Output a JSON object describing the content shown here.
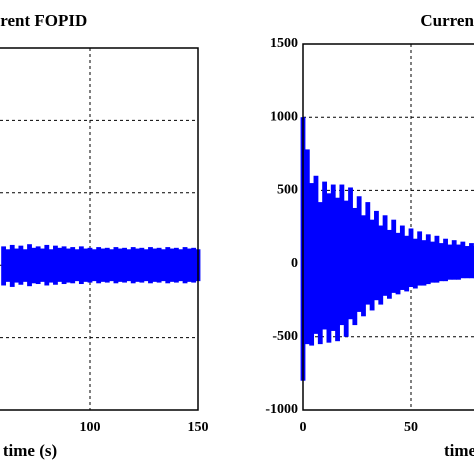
{
  "chart_data": [
    {
      "type": "band",
      "title": "rrent FOPID",
      "x_label": "time (s)",
      "color": "#0000ff",
      "xlim": [
        0,
        150
      ],
      "xticks": [
        100,
        150
      ],
      "ylim": [
        -1000,
        1500
      ],
      "yticks": [
        -1000,
        -500,
        0,
        500,
        1000,
        1500
      ],
      "ytick_labels": false,
      "grid": true,
      "x": [
        60,
        62,
        64,
        66,
        68,
        70,
        72,
        74,
        76,
        78,
        80,
        82,
        84,
        86,
        88,
        90,
        92,
        94,
        96,
        98,
        100,
        102,
        104,
        106,
        108,
        110,
        112,
        114,
        116,
        118,
        120,
        122,
        124,
        126,
        128,
        130,
        132,
        134,
        136,
        138,
        140,
        142,
        144,
        146,
        148,
        150
      ],
      "high": [
        130,
        110,
        140,
        115,
        135,
        110,
        145,
        120,
        130,
        115,
        140,
        110,
        135,
        120,
        130,
        115,
        125,
        110,
        130,
        115,
        120,
        110,
        125,
        115,
        120,
        110,
        125,
        115,
        120,
        110,
        125,
        115,
        120,
        110,
        125,
        115,
        120,
        110,
        125,
        115,
        120,
        110,
        125,
        115,
        120,
        110
      ],
      "low": [
        -140,
        -115,
        -150,
        -120,
        -135,
        -115,
        -145,
        -125,
        -130,
        -115,
        -140,
        -120,
        -135,
        -115,
        -130,
        -120,
        -125,
        -110,
        -130,
        -115,
        -120,
        -110,
        -125,
        -115,
        -120,
        -110,
        -125,
        -115,
        -120,
        -110,
        -125,
        -115,
        -120,
        -110,
        -125,
        -115,
        -120,
        -110,
        -125,
        -115,
        -120,
        -110,
        -125,
        -115,
        -120,
        -110
      ]
    },
    {
      "type": "band",
      "title": "Current",
      "x_label": "time",
      "color": "#0000ff",
      "xlim": [
        0,
        150
      ],
      "xticks": [
        0,
        50
      ],
      "ylim": [
        -1000,
        1500
      ],
      "yticks": [
        -1000,
        -500,
        0,
        500,
        1000,
        1500
      ],
      "ytick_labels": true,
      "grid": true,
      "x": [
        0,
        2,
        4,
        6,
        8,
        10,
        12,
        14,
        16,
        18,
        20,
        22,
        24,
        26,
        28,
        30,
        32,
        34,
        36,
        38,
        40,
        42,
        44,
        46,
        48,
        50,
        52,
        54,
        56,
        58,
        60,
        62,
        64,
        66,
        68,
        70,
        72,
        74,
        76,
        78,
        80
      ],
      "high": [
        1000,
        780,
        550,
        600,
        420,
        560,
        480,
        540,
        450,
        540,
        430,
        520,
        380,
        460,
        330,
        420,
        300,
        360,
        260,
        330,
        230,
        300,
        210,
        260,
        190,
        240,
        170,
        220,
        160,
        200,
        150,
        190,
        140,
        170,
        130,
        160,
        130,
        150,
        120,
        140,
        120
      ],
      "low": [
        -800,
        -550,
        -560,
        -480,
        -550,
        -450,
        -540,
        -460,
        -530,
        -420,
        -500,
        -380,
        -420,
        -330,
        -360,
        -280,
        -320,
        -250,
        -280,
        -220,
        -240,
        -200,
        -210,
        -180,
        -190,
        -160,
        -170,
        -150,
        -150,
        -140,
        -130,
        -130,
        -120,
        -120,
        -110,
        -110,
        -110,
        -100,
        -100,
        -100,
        -100
      ]
    }
  ]
}
